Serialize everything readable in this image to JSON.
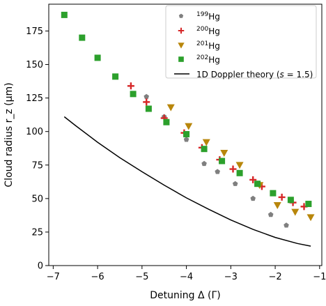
{
  "chart_data": {
    "type": "scatter",
    "title": "",
    "xlabel": "Detuning Δ (Γ)",
    "ylabel": "Cloud radius r_z (μm)",
    "xlim": [
      -7.1,
      -0.95
    ],
    "ylim": [
      0,
      195
    ],
    "xticks": [
      -7,
      -6,
      -5,
      -4,
      -3,
      -2,
      -1
    ],
    "yticks": [
      0,
      25,
      50,
      75,
      100,
      125,
      150,
      175
    ],
    "xtick_labels": [
      "−7",
      "−6",
      "−5",
      "−4",
      "−3",
      "−2",
      "−1"
    ],
    "ytick_labels": [
      "0",
      "25",
      "50",
      "75",
      "100",
      "125",
      "150",
      "175"
    ],
    "grid": false,
    "legend_position": "top-right",
    "series": [
      {
        "name": "199Hg",
        "label_mass": "199",
        "label_symbol": "Hg",
        "color": "#7f7f7f",
        "marker": "pentagon",
        "x": [
          -4.9,
          -4.5,
          -4.0,
          -3.6,
          -3.3,
          -2.9,
          -2.5,
          -2.1,
          -1.75
        ],
        "y": [
          126,
          111,
          94,
          76,
          70,
          61,
          50,
          38,
          30
        ]
      },
      {
        "name": "200Hg",
        "label_mass": "200",
        "label_symbol": "Hg",
        "color": "#d62728",
        "marker": "plus",
        "x": [
          -5.25,
          -4.9,
          -4.5,
          -4.05,
          -3.65,
          -3.25,
          -2.95,
          -2.5,
          -2.3,
          -1.85,
          -1.6,
          -1.35
        ],
        "y": [
          134,
          122,
          110,
          99,
          88,
          79,
          72,
          64,
          59,
          51,
          47,
          44
        ]
      },
      {
        "name": "201Hg",
        "label_mass": "201",
        "label_symbol": "Hg",
        "color": "#b8860b",
        "marker": "triangle-down",
        "x": [
          -4.35,
          -3.95,
          -3.55,
          -3.15,
          -2.8,
          -2.35,
          -1.95,
          -1.55,
          -1.2
        ],
        "y": [
          118,
          104,
          92,
          84,
          75,
          60,
          45,
          40,
          36
        ]
      },
      {
        "name": "202Hg",
        "label_mass": "202",
        "label_symbol": "Hg",
        "color": "#2ca02c",
        "marker": "square",
        "x": [
          -6.75,
          -6.35,
          -6.0,
          -5.6,
          -5.2,
          -4.85,
          -4.45,
          -4.0,
          -3.6,
          -3.2,
          -2.8,
          -2.4,
          -2.05,
          -1.65,
          -1.25
        ],
        "y": [
          187,
          170,
          155,
          141,
          128,
          117,
          107,
          98,
          87,
          78,
          69,
          61,
          54,
          49,
          46
        ]
      }
    ],
    "theory": {
      "name": "1D Doppler theory (s = 1.5)",
      "label_prefix": "1D Doppler theory (",
      "label_var": "s",
      "label_rest": " = 1.5)",
      "color": "#000000",
      "x": [
        -6.75,
        -6.5,
        -6.0,
        -5.5,
        -5.0,
        -4.5,
        -4.0,
        -3.5,
        -3.0,
        -2.5,
        -2.0,
        -1.5,
        -1.2
      ],
      "y": [
        111,
        104.5,
        92,
        80.5,
        70,
        60,
        50.5,
        42,
        34,
        27,
        21,
        16.5,
        14.5
      ]
    }
  }
}
